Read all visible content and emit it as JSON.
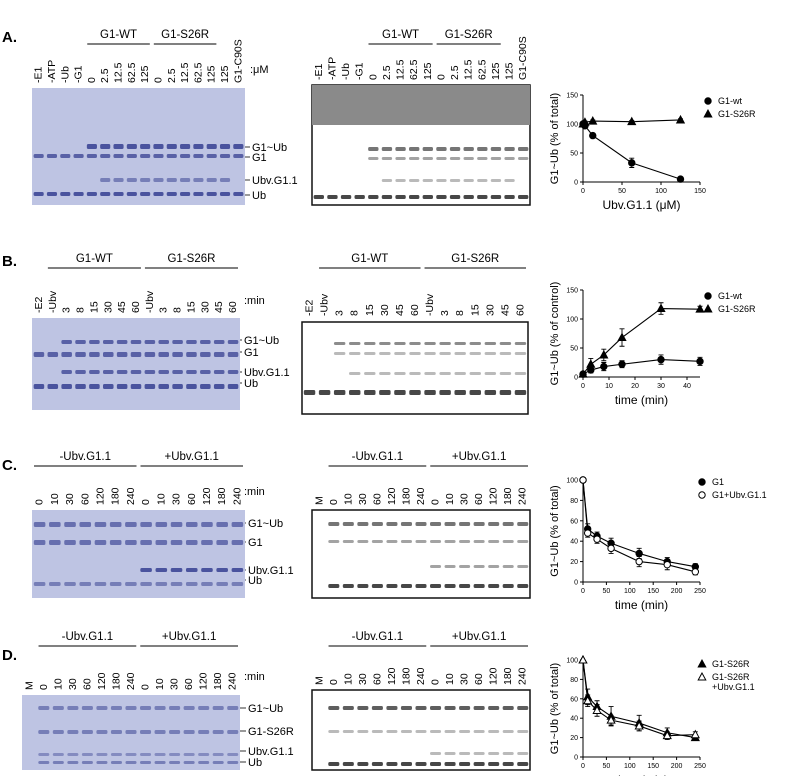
{
  "panels": [
    {
      "label": "A.",
      "left": {
        "groups": [
          "G1-WT",
          "G1-S26R"
        ],
        "lanes": [
          "-E1",
          "-ATP",
          "-Ub",
          "-G1",
          "0",
          "2.5",
          "12.5",
          "62.5",
          "125",
          "0",
          "2.5",
          "12.5",
          "62.5",
          "125",
          "125",
          "G1-C90S"
        ],
        "unit": ":μM"
      },
      "bands": [
        "G1~Ub",
        "G1",
        "Ubv.G1.1",
        "Ub"
      ],
      "middle": {
        "groups": [
          "G1-WT",
          "G1-S26R"
        ],
        "lanes": [
          "-E1",
          "-ATP",
          "-Ub",
          "-G1",
          "0",
          "2.5",
          "12.5",
          "62.5",
          "125",
          "0",
          "2.5",
          "12.5",
          "62.5",
          "125",
          "125",
          "G1-C90S"
        ]
      }
    },
    {
      "label": "B.",
      "left": {
        "groups": [
          "G1-WT",
          "G1-S26R"
        ],
        "lanes": [
          "-E2",
          "-Ubv",
          "3",
          "8",
          "15",
          "30",
          "45",
          "60",
          "-Ubv",
          "3",
          "8",
          "15",
          "30",
          "45",
          "60"
        ],
        "unit": ":min"
      },
      "bands": [
        "G1~Ub",
        "G1",
        "Ubv.G1.1",
        "Ub"
      ],
      "middle": {
        "groups": [
          "G1-WT",
          "G1-S26R"
        ],
        "lanes": [
          "-E2",
          "-Ubv",
          "3",
          "8",
          "15",
          "30",
          "45",
          "60",
          "-Ubv",
          "3",
          "8",
          "15",
          "30",
          "45",
          "60"
        ]
      }
    },
    {
      "label": "C.",
      "left": {
        "groups": [
          "-Ubv.G1.1",
          "+Ubv.G1.1"
        ],
        "lanes": [
          "0",
          "10",
          "30",
          "60",
          "120",
          "180",
          "240",
          "0",
          "10",
          "30",
          "60",
          "120",
          "180",
          "240"
        ],
        "unit": ":min"
      },
      "bands": [
        "G1~Ub",
        "G1",
        "Ubv.G1.1",
        "Ub"
      ],
      "middle": {
        "groups": [
          "-Ubv.G1.1",
          "+Ubv.G1.1"
        ],
        "lanes": [
          "M",
          "0",
          "10",
          "30",
          "60",
          "120",
          "180",
          "240",
          "0",
          "10",
          "30",
          "60",
          "120",
          "180",
          "240"
        ]
      }
    },
    {
      "label": "D.",
      "left": {
        "groups": [
          "-Ubv.G1.1",
          "+Ubv.G1.1"
        ],
        "lanes": [
          "M",
          "0",
          "10",
          "30",
          "60",
          "120",
          "180",
          "240",
          "0",
          "10",
          "30",
          "60",
          "120",
          "180",
          "240"
        ],
        "unit": ":min"
      },
      "bands": [
        "G1~Ub",
        "G1-S26R",
        "Ubv.G1.1",
        "Ub"
      ],
      "middle": {
        "groups": [
          "-Ubv.G1.1",
          "+Ubv.G1.1"
        ],
        "lanes": [
          "M",
          "0",
          "10",
          "30",
          "60",
          "120",
          "180",
          "240",
          "0",
          "10",
          "30",
          "60",
          "120",
          "180",
          "240"
        ]
      }
    }
  ],
  "chart_data": [
    {
      "type": "line",
      "xlabel": "Ubv.G1.1 (μM)",
      "ylabel": "G1~Ub (% of total)",
      "x": [
        0,
        2.5,
        12.5,
        62.5,
        125
      ],
      "xlim": [
        0,
        150
      ],
      "xticks": [
        0,
        50,
        100,
        150
      ],
      "ylim": [
        0,
        150
      ],
      "yticks": [
        0,
        50,
        100,
        150
      ],
      "legend": "upper right",
      "series": [
        {
          "name": "G1-wt",
          "marker": "circle",
          "color": "#000000",
          "values": [
            100,
            97,
            80,
            33,
            5
          ],
          "errors": [
            3,
            2,
            4,
            8,
            3
          ]
        },
        {
          "name": "G1-S26R",
          "marker": "triangle",
          "color": "#000000",
          "values": [
            100,
            103,
            105,
            104,
            107
          ],
          "errors": [
            2,
            2,
            2,
            2,
            2
          ]
        }
      ]
    },
    {
      "type": "line",
      "xlabel": "time (min)",
      "ylabel": "G1~Ub (% of control)",
      "x": [
        0,
        3,
        8,
        15,
        30,
        45
      ],
      "xlim": [
        0,
        45
      ],
      "xticks": [
        0,
        10,
        20,
        30,
        40
      ],
      "ylim": [
        0,
        150
      ],
      "yticks": [
        0,
        50,
        100,
        150
      ],
      "legend": "upper right",
      "series": [
        {
          "name": "G1-wt",
          "marker": "circle",
          "color": "#000000",
          "values": [
            5,
            12,
            18,
            22,
            30,
            27
          ],
          "errors": [
            3,
            5,
            7,
            6,
            8,
            7
          ]
        },
        {
          "name": "G1-S26R",
          "marker": "triangle",
          "color": "#000000",
          "values": [
            5,
            22,
            38,
            68,
            118,
            117
          ],
          "errors": [
            3,
            10,
            10,
            15,
            10,
            5
          ]
        }
      ]
    },
    {
      "type": "line",
      "xlabel": "time (min)",
      "ylabel": "G1~Ub (% of total)",
      "x": [
        0,
        10,
        30,
        60,
        120,
        180,
        240
      ],
      "xlim": [
        0,
        250
      ],
      "xticks": [
        0,
        50,
        100,
        150,
        200,
        250
      ],
      "ylim": [
        0,
        100
      ],
      "yticks": [
        0,
        20,
        40,
        60,
        80,
        100
      ],
      "legend": "upper right",
      "series": [
        {
          "name": "G1",
          "marker": "circle",
          "color": "#000000",
          "values": [
            100,
            52,
            45,
            38,
            28,
            20,
            15
          ],
          "errors": [
            0,
            5,
            4,
            5,
            5,
            4,
            3
          ]
        },
        {
          "name": "G1+Ubv.G1.1",
          "marker": "open-circle",
          "color": "#000000",
          "values": [
            100,
            48,
            42,
            33,
            20,
            17,
            10
          ],
          "errors": [
            0,
            4,
            4,
            5,
            5,
            5,
            3
          ]
        }
      ]
    },
    {
      "type": "line",
      "xlabel": "time (min)",
      "ylabel": "G1~Ub (% of total)",
      "x": [
        0,
        10,
        30,
        60,
        120,
        180,
        240
      ],
      "xlim": [
        0,
        250
      ],
      "xticks": [
        0,
        50,
        100,
        150,
        200,
        250
      ],
      "ylim": [
        0,
        100
      ],
      "yticks": [
        0,
        20,
        40,
        60,
        80,
        100
      ],
      "legend": "upper right",
      "series": [
        {
          "name": "G1-S26R",
          "marker": "triangle",
          "color": "#000000",
          "values": [
            100,
            62,
            52,
            42,
            35,
            25,
            20
          ],
          "errors": [
            0,
            8,
            6,
            10,
            8,
            5,
            3
          ]
        },
        {
          "name": "G1-S26R\n+Ubv.G1.1",
          "marker": "open-triangle",
          "color": "#000000",
          "values": [
            100,
            58,
            48,
            38,
            32,
            22,
            23
          ],
          "errors": [
            0,
            6,
            6,
            5,
            5,
            4,
            3
          ]
        }
      ]
    }
  ]
}
